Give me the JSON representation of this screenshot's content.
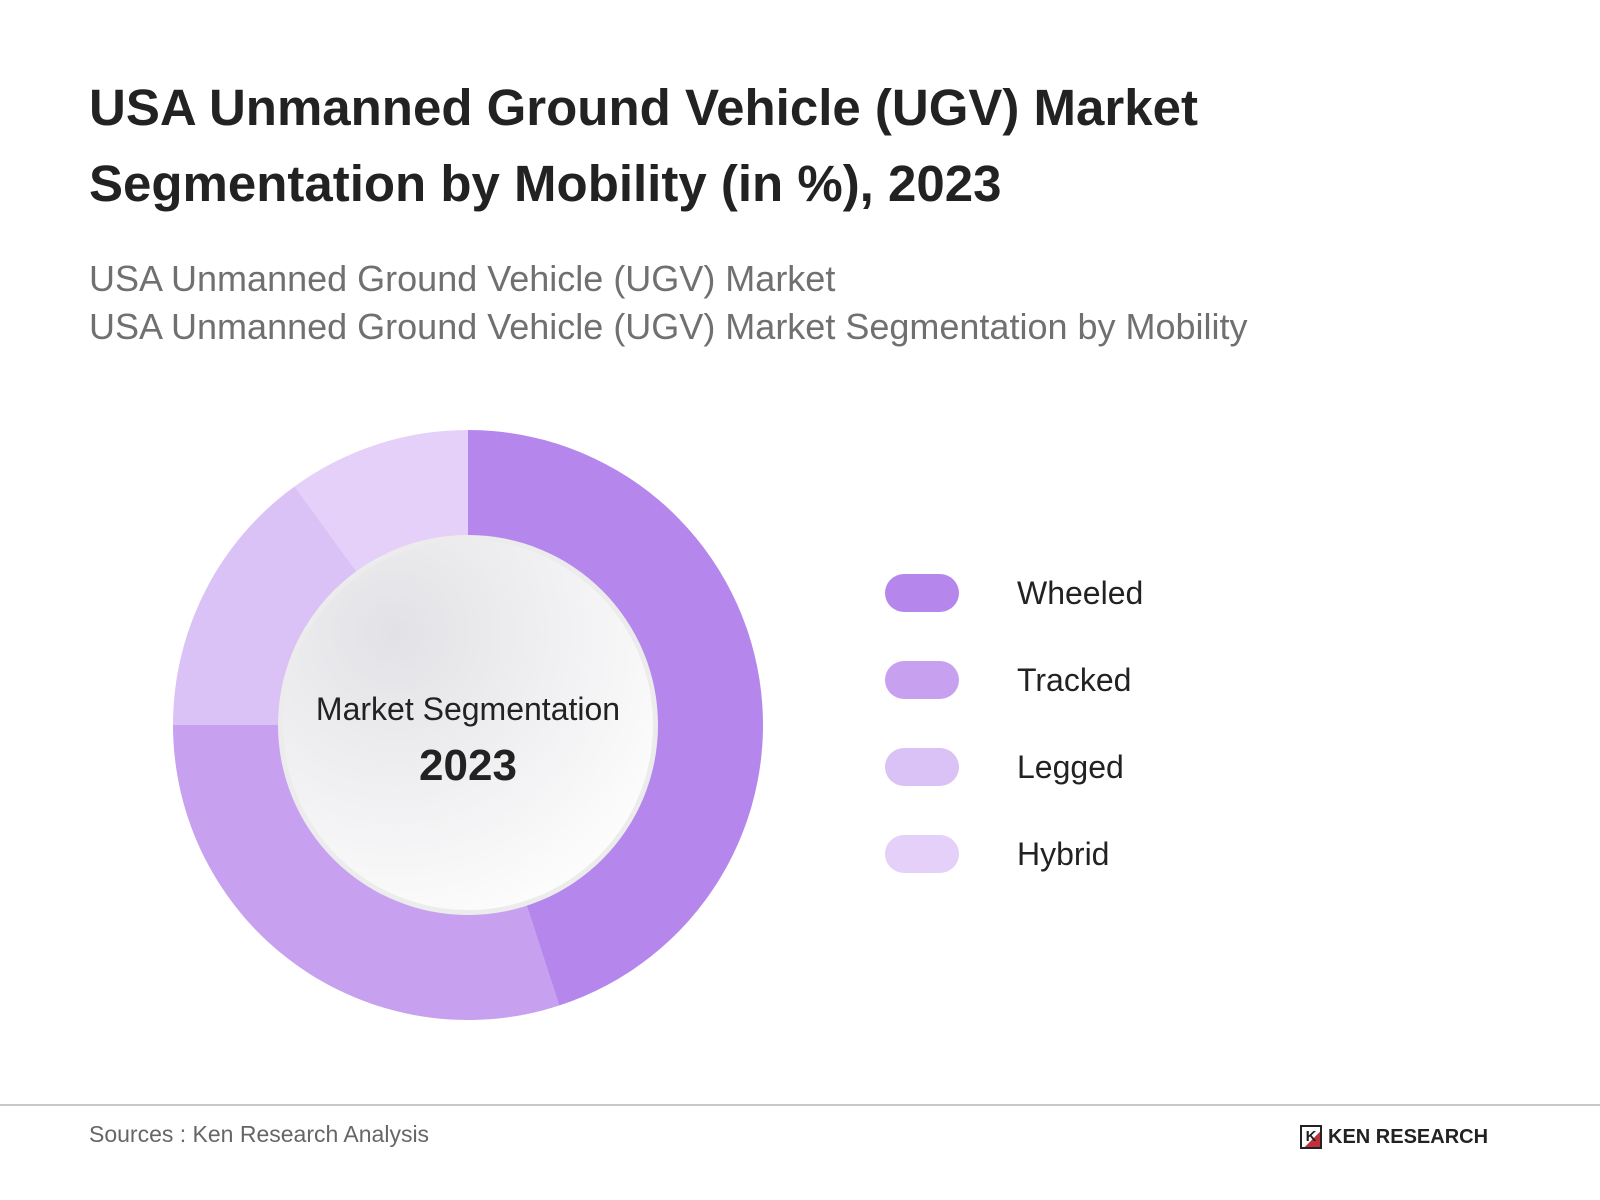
{
  "title": "USA Unmanned Ground Vehicle (UGV) Market Segmentation by Mobility (in %), 2023",
  "subtitle_line1": "USA Unmanned Ground Vehicle (UGV) Market",
  "subtitle_line2": "USA Unmanned Ground Vehicle (UGV) Market Segmentation by Mobility",
  "chart_data": {
    "type": "pie",
    "donut": true,
    "center_label": "Market Segmentation",
    "center_year": "2023",
    "categories": [
      "Wheeled",
      "Tracked",
      "Legged",
      "Hybrid"
    ],
    "values": [
      45,
      30,
      15,
      10
    ],
    "colors": [
      "#b586ec",
      "#c7a0f0",
      "#dbc2f6",
      "#e4d0f8"
    ],
    "legend_position": "right"
  },
  "footer": {
    "source": "Sources : Ken Research Analysis",
    "logo": "KEN RESEARCH"
  }
}
